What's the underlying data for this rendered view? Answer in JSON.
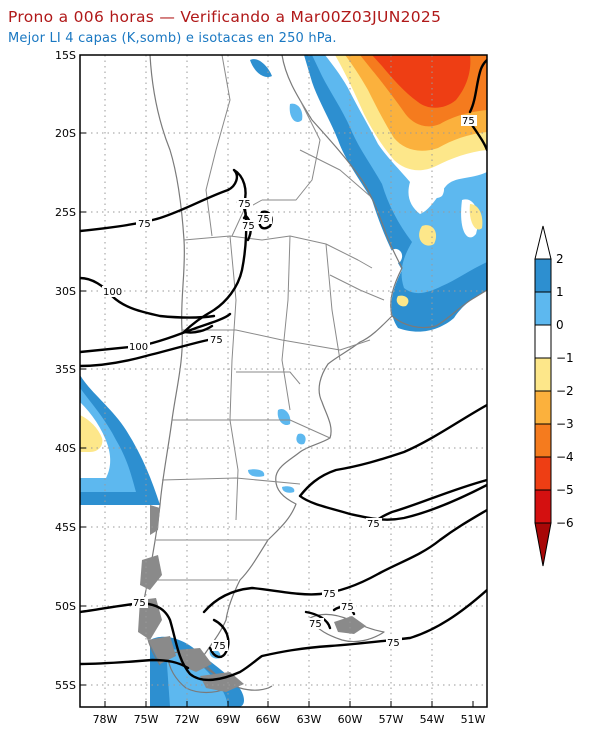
{
  "title_line1": "Prono a 006 horas — Verificando a Mar00Z03JUN2025",
  "title_line2": "Mejor LI 4 capas (K,somb) e isotacas en 250 hPa.",
  "lat_labels": [
    "15S",
    "20S",
    "25S",
    "30S",
    "35S",
    "40S",
    "45S",
    "50S",
    "55S"
  ],
  "lon_labels": [
    "78W",
    "75W",
    "72W",
    "69W",
    "66W",
    "63W",
    "60W",
    "57W",
    "54W",
    "51W"
  ],
  "colorbar": {
    "labels": [
      "2",
      "1",
      "0",
      "−1",
      "−2",
      "−3",
      "−4",
      "−5",
      "−6"
    ],
    "colors": [
      "#ffffff",
      "#2d8fd0",
      "#5db8ef",
      "#ffffff",
      "#fde78a",
      "#fbb13d",
      "#f57b1e",
      "#ee3e14",
      "#d41010",
      "#a80707"
    ]
  },
  "contour_labels": {
    "c75_nw": "75",
    "c100_a": "100",
    "c100_b": "100",
    "c75_chaco": "75",
    "c75_tuc1": "75",
    "c75_tuc2": "75",
    "c75_tuc3": "75",
    "c75_ne": "75",
    "c75_east": "75",
    "c75_s1": "75",
    "c75_s2": "75",
    "c75_s3": "75",
    "c75_s4": "75",
    "c75_s5": "75"
  }
}
